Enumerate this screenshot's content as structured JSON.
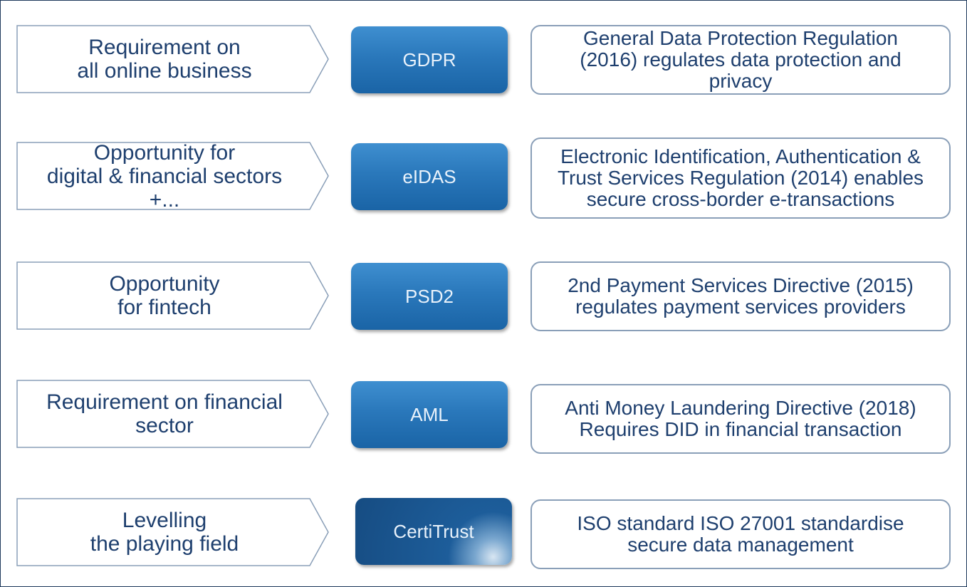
{
  "rows": [
    {
      "label": "Requirement on\nall online business",
      "badge": "GDPR",
      "description": "General Data Protection Regulation\n(2016) regulates data protection and\nprivacy"
    },
    {
      "label": "Opportunity for\ndigital & financial sectors\n+...",
      "badge": "eIDAS",
      "description": "Electronic Identification, Authentication &\nTrust Services Regulation (2014) enables\nsecure cross-border e-transactions"
    },
    {
      "label": "Opportunity\nfor fintech",
      "badge": "PSD2",
      "description": "2nd Payment Services Directive (2015)\nregulates payment services providers"
    },
    {
      "label": "Requirement on financial\nsector",
      "badge": "AML",
      "description": "Anti Money Laundering Directive (2018)\nRequires DID in financial transaction"
    },
    {
      "label": "Levelling\nthe playing field",
      "badge": "CertiTrust",
      "description": "ISO standard ISO 27001 standardise\nsecure data management"
    }
  ],
  "colors": {
    "text": "#1e3f6e",
    "badge": "#2a78bb",
    "border": "#8a9fb8",
    "frame": "#1f3a5c"
  }
}
